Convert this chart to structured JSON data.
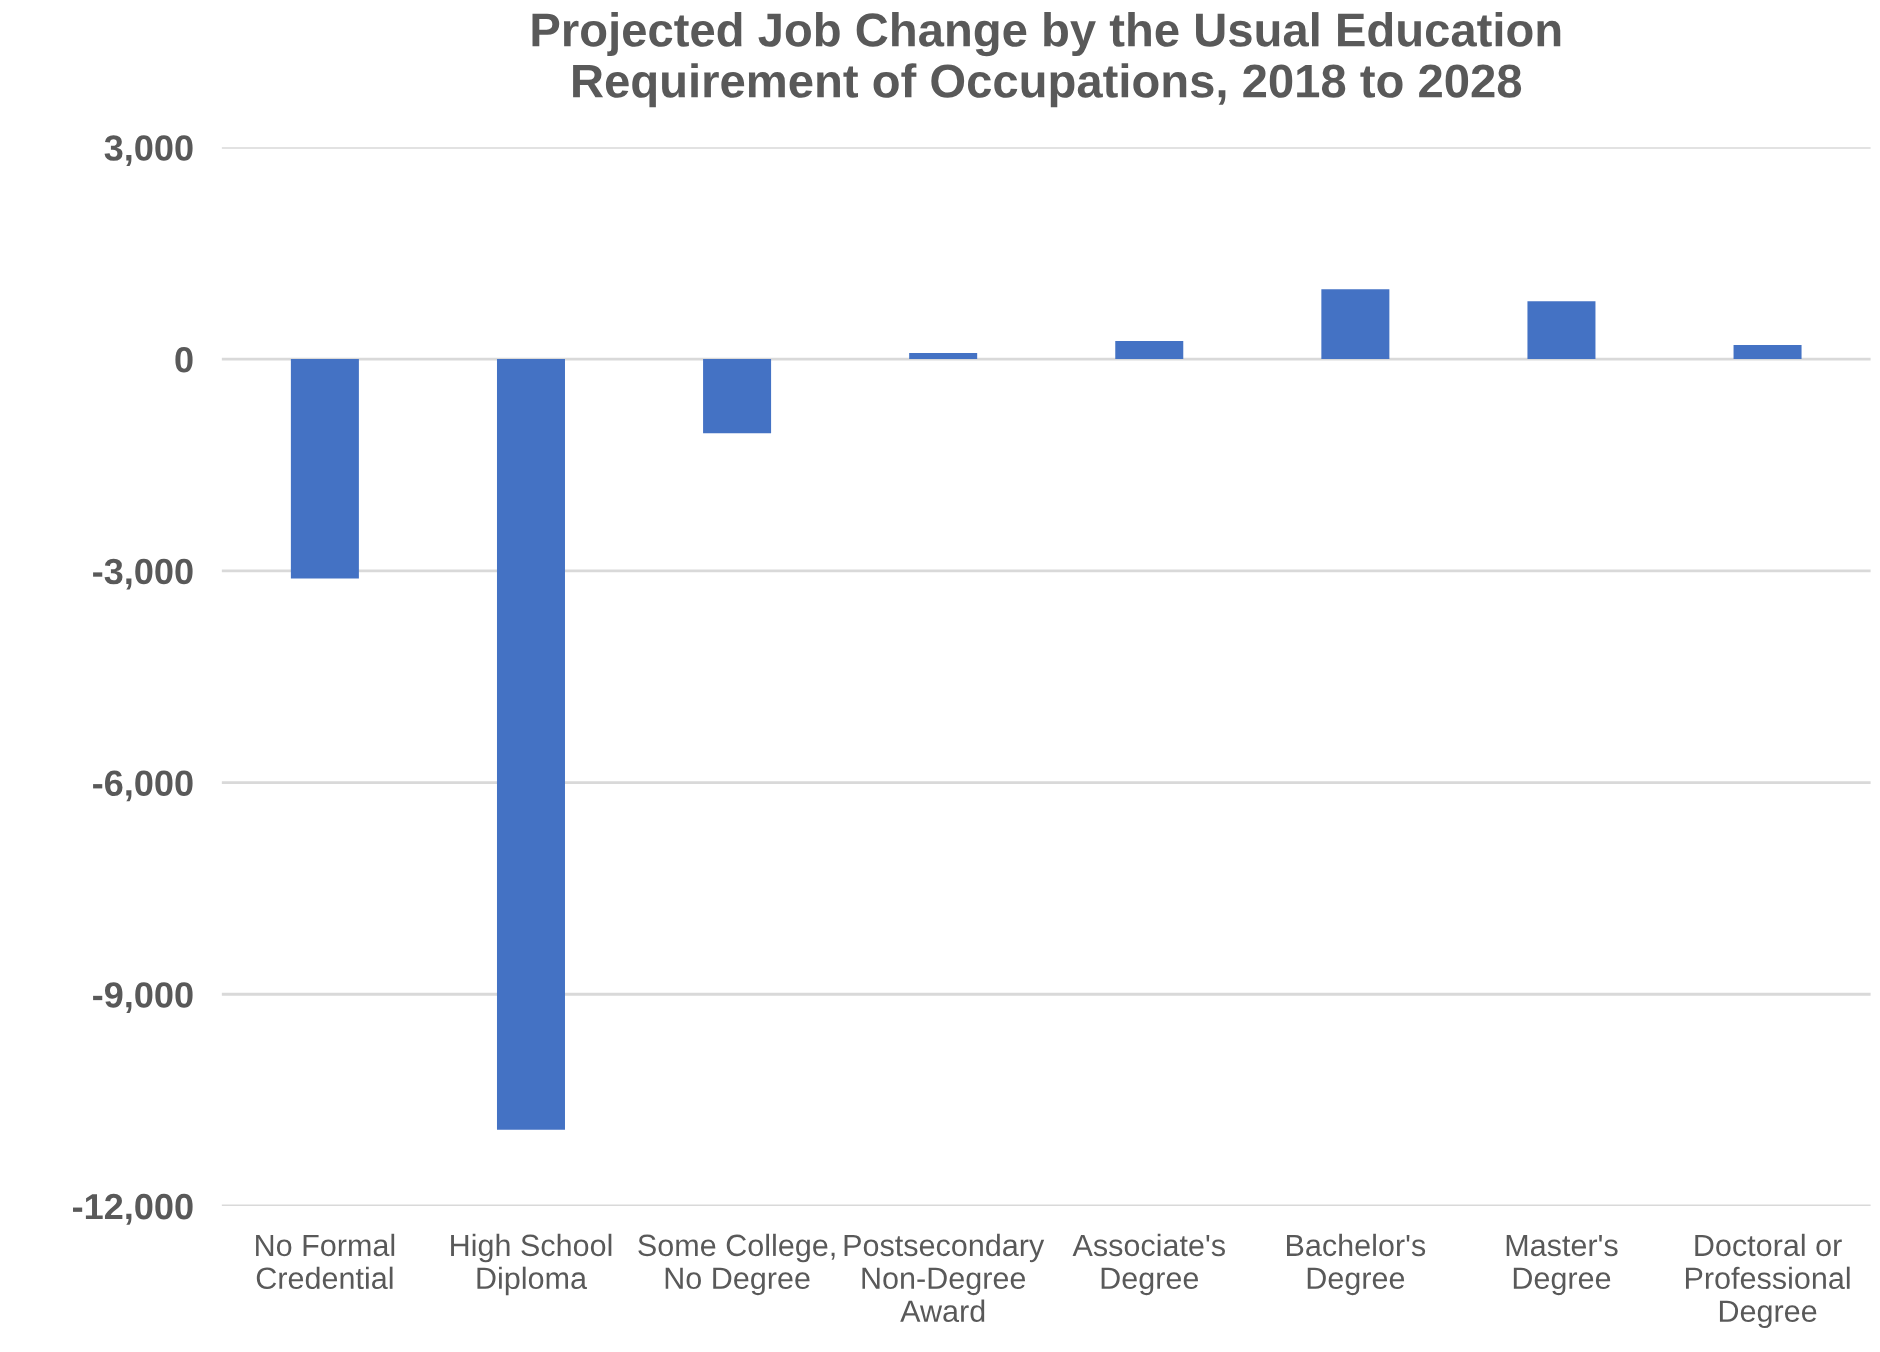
{
  "chart_data": {
    "type": "bar",
    "title": "Projected Job Change by the Usual Education\nRequirement of Occupations, 2018 to 2028",
    "categories": [
      "No Formal\nCredential",
      "High School\nDiploma",
      "Some College,\nNo Degree",
      "Postsecondary\nNon-Degree\nAward",
      "Associate's\nDegree",
      "Bachelor's\nDegree",
      "Master's\nDegree",
      "Doctoral or\nProfessional\nDegree"
    ],
    "values": [
      -3110,
      -10920,
      -1050,
      85,
      255,
      990,
      820,
      200
    ],
    "color": "#4472c4",
    "ylim": [
      -12000,
      3000
    ],
    "yticks": [
      {
        "value": -12000,
        "label": "-12,000"
      },
      {
        "value": -9000,
        "label": "-9,000"
      },
      {
        "value": -6000,
        "label": "-6,000"
      },
      {
        "value": -3000,
        "label": "-3,000"
      },
      0,
      {
        "value": 3000,
        "label": "3,000"
      }
    ],
    "grid": "y"
  }
}
